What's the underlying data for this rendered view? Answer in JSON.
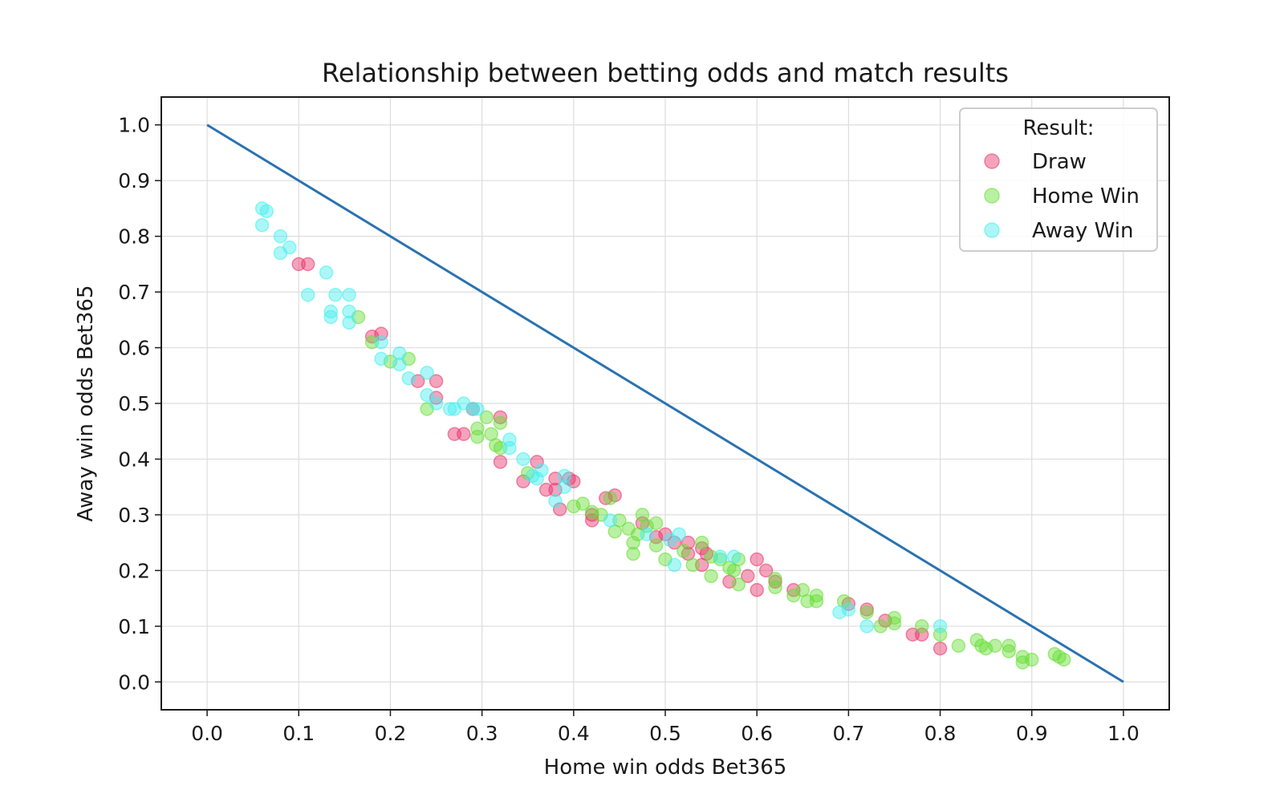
{
  "chart_data": {
    "type": "scatter",
    "title": "Relationship between betting odds and match results",
    "xlabel": "Home win odds Bet365",
    "ylabel": "Away win odds Bet365",
    "xlim": [
      -0.05,
      1.05
    ],
    "ylim": [
      -0.05,
      1.05
    ],
    "xticks": [
      "0.0",
      "0.1",
      "0.2",
      "0.3",
      "0.4",
      "0.5",
      "0.6",
      "0.7",
      "0.8",
      "0.9",
      "1.0"
    ],
    "yticks": [
      "0.0",
      "0.1",
      "0.2",
      "0.3",
      "0.4",
      "0.5",
      "0.6",
      "0.7",
      "0.8",
      "0.9",
      "1.0"
    ],
    "grid": true,
    "legend": {
      "title": "Result:",
      "placement": "top-right"
    },
    "reference_line": {
      "x": [
        0,
        1
      ],
      "y": [
        1,
        0
      ],
      "color": "#2a72b0"
    },
    "series": [
      {
        "name": "Draw",
        "color": "#e8336b",
        "points": [
          [
            0.1,
            0.75
          ],
          [
            0.11,
            0.75
          ],
          [
            0.18,
            0.62
          ],
          [
            0.19,
            0.625
          ],
          [
            0.23,
            0.54
          ],
          [
            0.25,
            0.54
          ],
          [
            0.25,
            0.51
          ],
          [
            0.27,
            0.445
          ],
          [
            0.28,
            0.445
          ],
          [
            0.29,
            0.49
          ],
          [
            0.32,
            0.475
          ],
          [
            0.32,
            0.395
          ],
          [
            0.345,
            0.36
          ],
          [
            0.36,
            0.395
          ],
          [
            0.37,
            0.345
          ],
          [
            0.38,
            0.365
          ],
          [
            0.385,
            0.31
          ],
          [
            0.395,
            0.365
          ],
          [
            0.4,
            0.36
          ],
          [
            0.38,
            0.345
          ],
          [
            0.42,
            0.29
          ],
          [
            0.42,
            0.3
          ],
          [
            0.435,
            0.33
          ],
          [
            0.445,
            0.335
          ],
          [
            0.475,
            0.285
          ],
          [
            0.49,
            0.26
          ],
          [
            0.5,
            0.265
          ],
          [
            0.51,
            0.25
          ],
          [
            0.525,
            0.25
          ],
          [
            0.525,
            0.23
          ],
          [
            0.54,
            0.24
          ],
          [
            0.54,
            0.21
          ],
          [
            0.545,
            0.23
          ],
          [
            0.57,
            0.18
          ],
          [
            0.59,
            0.19
          ],
          [
            0.6,
            0.22
          ],
          [
            0.6,
            0.165
          ],
          [
            0.61,
            0.2
          ],
          [
            0.62,
            0.18
          ],
          [
            0.64,
            0.165
          ],
          [
            0.7,
            0.14
          ],
          [
            0.72,
            0.13
          ],
          [
            0.74,
            0.11
          ],
          [
            0.77,
            0.085
          ],
          [
            0.78,
            0.085
          ],
          [
            0.8,
            0.06
          ]
        ]
      },
      {
        "name": "Home Win",
        "color": "#66dd33",
        "points": [
          [
            0.165,
            0.655
          ],
          [
            0.18,
            0.61
          ],
          [
            0.2,
            0.575
          ],
          [
            0.22,
            0.58
          ],
          [
            0.24,
            0.49
          ],
          [
            0.295,
            0.455
          ],
          [
            0.295,
            0.44
          ],
          [
            0.305,
            0.475
          ],
          [
            0.31,
            0.445
          ],
          [
            0.315,
            0.425
          ],
          [
            0.32,
            0.42
          ],
          [
            0.32,
            0.465
          ],
          [
            0.35,
            0.375
          ],
          [
            0.4,
            0.315
          ],
          [
            0.41,
            0.32
          ],
          [
            0.42,
            0.305
          ],
          [
            0.43,
            0.3
          ],
          [
            0.44,
            0.33
          ],
          [
            0.445,
            0.27
          ],
          [
            0.45,
            0.29
          ],
          [
            0.46,
            0.275
          ],
          [
            0.465,
            0.25
          ],
          [
            0.465,
            0.23
          ],
          [
            0.47,
            0.265
          ],
          [
            0.475,
            0.3
          ],
          [
            0.48,
            0.28
          ],
          [
            0.49,
            0.285
          ],
          [
            0.49,
            0.245
          ],
          [
            0.5,
            0.22
          ],
          [
            0.52,
            0.235
          ],
          [
            0.53,
            0.21
          ],
          [
            0.54,
            0.25
          ],
          [
            0.55,
            0.19
          ],
          [
            0.55,
            0.225
          ],
          [
            0.56,
            0.22
          ],
          [
            0.57,
            0.205
          ],
          [
            0.575,
            0.2
          ],
          [
            0.58,
            0.175
          ],
          [
            0.58,
            0.22
          ],
          [
            0.62,
            0.185
          ],
          [
            0.62,
            0.17
          ],
          [
            0.64,
            0.155
          ],
          [
            0.65,
            0.165
          ],
          [
            0.655,
            0.145
          ],
          [
            0.665,
            0.155
          ],
          [
            0.665,
            0.145
          ],
          [
            0.695,
            0.145
          ],
          [
            0.72,
            0.125
          ],
          [
            0.735,
            0.1
          ],
          [
            0.75,
            0.115
          ],
          [
            0.75,
            0.105
          ],
          [
            0.78,
            0.1
          ],
          [
            0.8,
            0.085
          ],
          [
            0.82,
            0.065
          ],
          [
            0.84,
            0.075
          ],
          [
            0.845,
            0.065
          ],
          [
            0.85,
            0.06
          ],
          [
            0.86,
            0.065
          ],
          [
            0.875,
            0.065
          ],
          [
            0.875,
            0.055
          ],
          [
            0.89,
            0.045
          ],
          [
            0.89,
            0.035
          ],
          [
            0.9,
            0.04
          ],
          [
            0.925,
            0.05
          ],
          [
            0.93,
            0.045
          ],
          [
            0.935,
            0.04
          ]
        ]
      },
      {
        "name": "Away Win",
        "color": "#44eeee",
        "points": [
          [
            0.06,
            0.85
          ],
          [
            0.065,
            0.845
          ],
          [
            0.06,
            0.82
          ],
          [
            0.08,
            0.8
          ],
          [
            0.09,
            0.78
          ],
          [
            0.08,
            0.77
          ],
          [
            0.13,
            0.735
          ],
          [
            0.11,
            0.695
          ],
          [
            0.14,
            0.695
          ],
          [
            0.155,
            0.695
          ],
          [
            0.135,
            0.665
          ],
          [
            0.135,
            0.655
          ],
          [
            0.155,
            0.665
          ],
          [
            0.155,
            0.645
          ],
          [
            0.19,
            0.61
          ],
          [
            0.19,
            0.58
          ],
          [
            0.21,
            0.59
          ],
          [
            0.21,
            0.57
          ],
          [
            0.22,
            0.545
          ],
          [
            0.24,
            0.555
          ],
          [
            0.24,
            0.515
          ],
          [
            0.25,
            0.5
          ],
          [
            0.265,
            0.49
          ],
          [
            0.27,
            0.49
          ],
          [
            0.28,
            0.5
          ],
          [
            0.29,
            0.49
          ],
          [
            0.295,
            0.49
          ],
          [
            0.33,
            0.435
          ],
          [
            0.33,
            0.42
          ],
          [
            0.345,
            0.4
          ],
          [
            0.355,
            0.37
          ],
          [
            0.36,
            0.365
          ],
          [
            0.365,
            0.38
          ],
          [
            0.38,
            0.325
          ],
          [
            0.39,
            0.37
          ],
          [
            0.39,
            0.35
          ],
          [
            0.44,
            0.29
          ],
          [
            0.48,
            0.265
          ],
          [
            0.505,
            0.255
          ],
          [
            0.51,
            0.21
          ],
          [
            0.515,
            0.265
          ],
          [
            0.56,
            0.225
          ],
          [
            0.575,
            0.225
          ],
          [
            0.69,
            0.125
          ],
          [
            0.7,
            0.13
          ],
          [
            0.72,
            0.1
          ],
          [
            0.8,
            0.1
          ]
        ]
      }
    ]
  }
}
